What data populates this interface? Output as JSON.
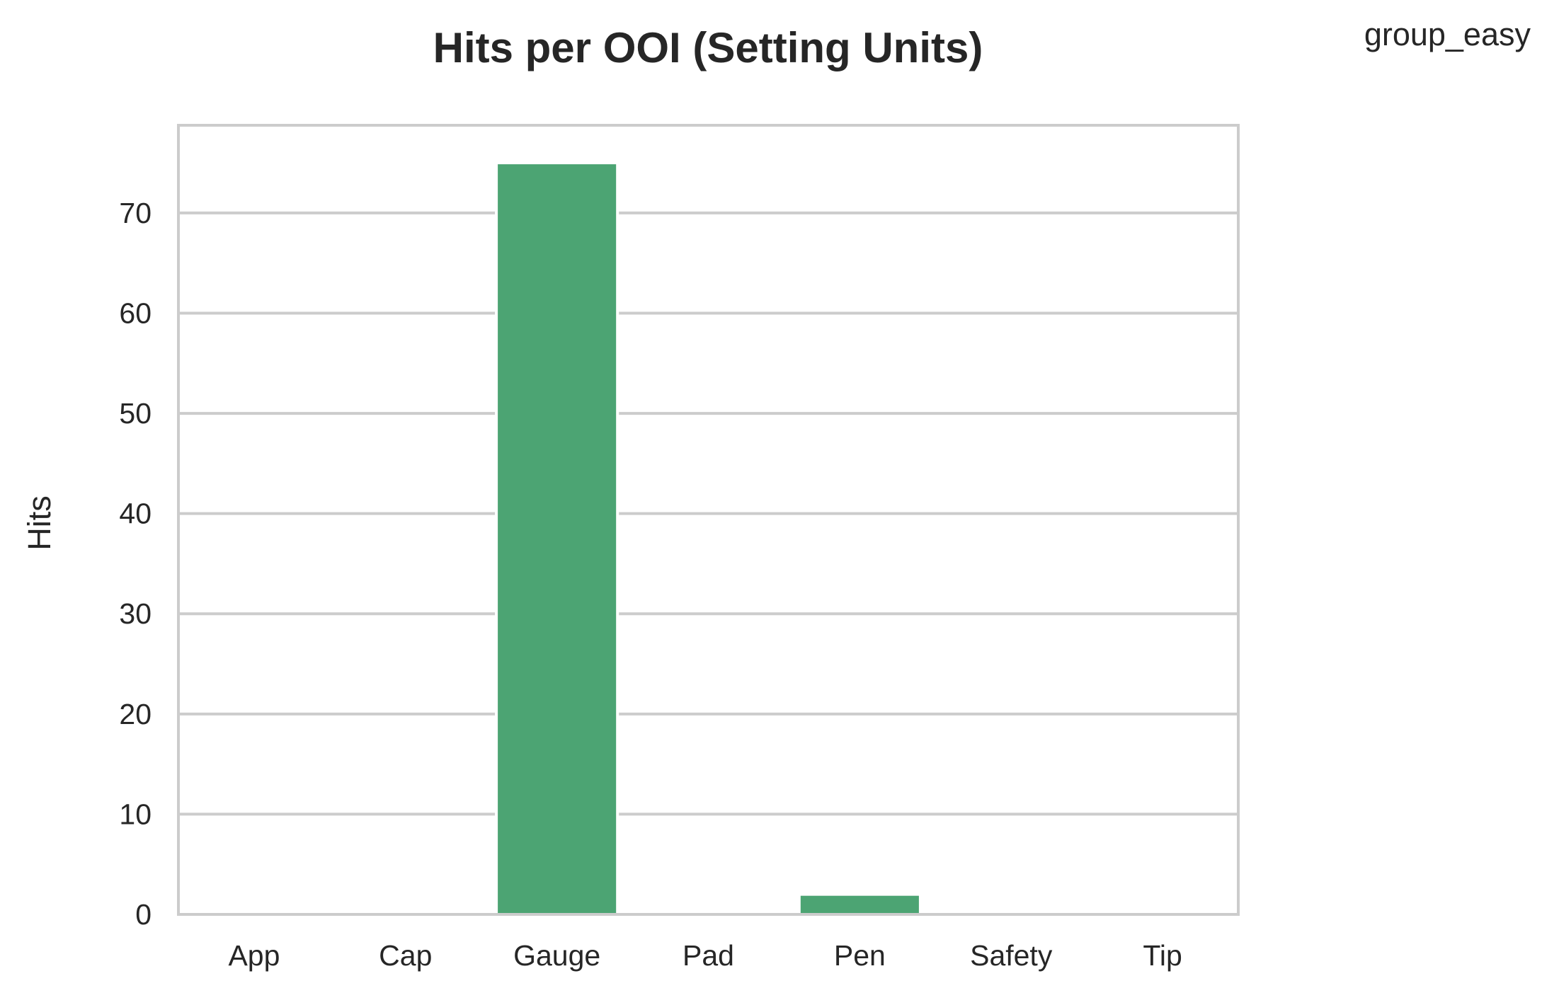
{
  "chart_data": {
    "type": "bar",
    "title": "Hits per OOI (Setting Units)",
    "xlabel": "",
    "ylabel": "Hits",
    "categories": [
      "App",
      "Cap",
      "Gauge",
      "Pad",
      "Pen",
      "Safety",
      "Tip"
    ],
    "series": [
      {
        "name": "group_easy",
        "values": [
          0,
          0,
          75,
          0,
          2,
          0,
          0
        ],
        "color": "#4ca473"
      }
    ],
    "ylim": [
      0,
      78.75
    ],
    "yticks": [
      "0",
      "10",
      "20",
      "30",
      "40",
      "50",
      "60",
      "70"
    ],
    "grid": "y-major",
    "legend_position": "top-right",
    "colors": {
      "bar": "#4ca473",
      "grid": "#cccccc",
      "frame": "#cccccc",
      "text": "#262626"
    }
  }
}
